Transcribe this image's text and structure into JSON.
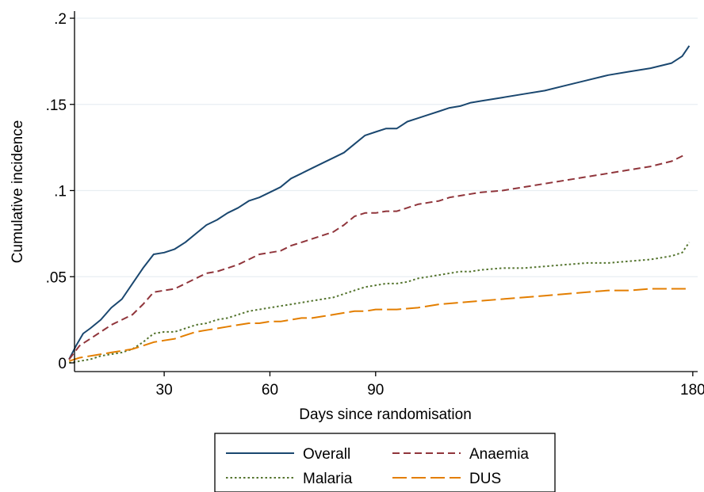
{
  "chart_data": {
    "type": "line",
    "title": "",
    "xlabel": "Days since randomisation",
    "ylabel": "Cumulative incidence",
    "xlim": [
      1,
      181
    ],
    "ylim": [
      0,
      0.2
    ],
    "xticks": [
      30,
      60,
      90,
      180
    ],
    "xtick_labels": [
      "30",
      "60",
      "90",
      "180"
    ],
    "yticks": [
      0,
      0.05,
      0.1,
      0.15,
      0.2
    ],
    "ytick_labels": [
      "0",
      ".05",
      ".1",
      ".15",
      ".2"
    ],
    "grid": "horizontal",
    "legend_position": "bottom",
    "series": [
      {
        "name": "Overall",
        "color": "#1a476f",
        "dash": "solid",
        "x": [
          3,
          5,
          7,
          9,
          12,
          15,
          18,
          21,
          24,
          27,
          30,
          33,
          36,
          39,
          42,
          45,
          48,
          51,
          54,
          57,
          60,
          63,
          66,
          69,
          72,
          75,
          78,
          81,
          84,
          87,
          90,
          93,
          96,
          99,
          102,
          105,
          108,
          111,
          114,
          117,
          120,
          126,
          132,
          138,
          144,
          150,
          156,
          162,
          168,
          174,
          177,
          179
        ],
        "y": [
          0.002,
          0.01,
          0.017,
          0.02,
          0.025,
          0.032,
          0.037,
          0.046,
          0.055,
          0.063,
          0.064,
          0.066,
          0.07,
          0.075,
          0.08,
          0.083,
          0.087,
          0.09,
          0.094,
          0.096,
          0.099,
          0.102,
          0.107,
          0.11,
          0.113,
          0.116,
          0.119,
          0.122,
          0.127,
          0.132,
          0.134,
          0.136,
          0.136,
          0.14,
          0.142,
          0.144,
          0.146,
          0.148,
          0.149,
          0.151,
          0.152,
          0.154,
          0.156,
          0.158,
          0.161,
          0.164,
          0.167,
          0.169,
          0.171,
          0.174,
          0.178,
          0.184
        ]
      },
      {
        "name": "Anaemia",
        "color": "#90353b",
        "dash": "dash",
        "x": [
          3,
          6,
          9,
          12,
          15,
          18,
          21,
          24,
          27,
          30,
          33,
          36,
          39,
          42,
          45,
          48,
          51,
          54,
          57,
          60,
          63,
          66,
          69,
          72,
          75,
          78,
          81,
          84,
          87,
          90,
          93,
          96,
          99,
          102,
          105,
          108,
          111,
          114,
          117,
          120,
          126,
          132,
          138,
          144,
          150,
          156,
          162,
          168,
          174,
          178
        ],
        "y": [
          0.002,
          0.01,
          0.014,
          0.018,
          0.022,
          0.025,
          0.028,
          0.034,
          0.041,
          0.042,
          0.043,
          0.046,
          0.049,
          0.052,
          0.053,
          0.055,
          0.057,
          0.06,
          0.063,
          0.064,
          0.065,
          0.068,
          0.07,
          0.072,
          0.074,
          0.076,
          0.08,
          0.085,
          0.087,
          0.087,
          0.088,
          0.088,
          0.09,
          0.092,
          0.093,
          0.094,
          0.096,
          0.097,
          0.098,
          0.099,
          0.1,
          0.102,
          0.104,
          0.106,
          0.108,
          0.11,
          0.112,
          0.114,
          0.117,
          0.121
        ]
      },
      {
        "name": "Malaria",
        "color": "#55752f",
        "dash": "dot",
        "x": [
          3,
          6,
          9,
          12,
          15,
          18,
          21,
          24,
          27,
          30,
          33,
          36,
          39,
          42,
          45,
          48,
          51,
          54,
          57,
          60,
          63,
          66,
          69,
          72,
          75,
          78,
          81,
          84,
          87,
          90,
          93,
          96,
          99,
          102,
          105,
          108,
          111,
          114,
          117,
          120,
          126,
          132,
          138,
          144,
          150,
          156,
          162,
          168,
          174,
          177,
          179
        ],
        "y": [
          0.0,
          0.001,
          0.002,
          0.004,
          0.005,
          0.006,
          0.008,
          0.012,
          0.017,
          0.018,
          0.018,
          0.02,
          0.022,
          0.023,
          0.025,
          0.026,
          0.028,
          0.03,
          0.031,
          0.032,
          0.033,
          0.034,
          0.035,
          0.036,
          0.037,
          0.038,
          0.04,
          0.042,
          0.044,
          0.045,
          0.046,
          0.046,
          0.047,
          0.049,
          0.05,
          0.051,
          0.052,
          0.053,
          0.053,
          0.054,
          0.055,
          0.055,
          0.056,
          0.057,
          0.058,
          0.058,
          0.059,
          0.06,
          0.062,
          0.064,
          0.07
        ]
      },
      {
        "name": "DUS",
        "color": "#e37e00",
        "dash": "longdash",
        "x": [
          3,
          6,
          9,
          12,
          15,
          18,
          21,
          24,
          27,
          30,
          33,
          36,
          39,
          42,
          45,
          48,
          51,
          54,
          57,
          60,
          63,
          66,
          69,
          72,
          75,
          78,
          81,
          84,
          87,
          90,
          96,
          102,
          108,
          114,
          120,
          126,
          132,
          138,
          144,
          150,
          156,
          162,
          168,
          174,
          178
        ],
        "y": [
          0.001,
          0.003,
          0.004,
          0.005,
          0.006,
          0.007,
          0.008,
          0.01,
          0.012,
          0.013,
          0.014,
          0.016,
          0.018,
          0.019,
          0.02,
          0.021,
          0.022,
          0.023,
          0.023,
          0.024,
          0.024,
          0.025,
          0.026,
          0.026,
          0.027,
          0.028,
          0.029,
          0.03,
          0.03,
          0.031,
          0.031,
          0.032,
          0.034,
          0.035,
          0.036,
          0.037,
          0.038,
          0.039,
          0.04,
          0.041,
          0.042,
          0.042,
          0.043,
          0.043,
          0.043
        ]
      }
    ]
  }
}
